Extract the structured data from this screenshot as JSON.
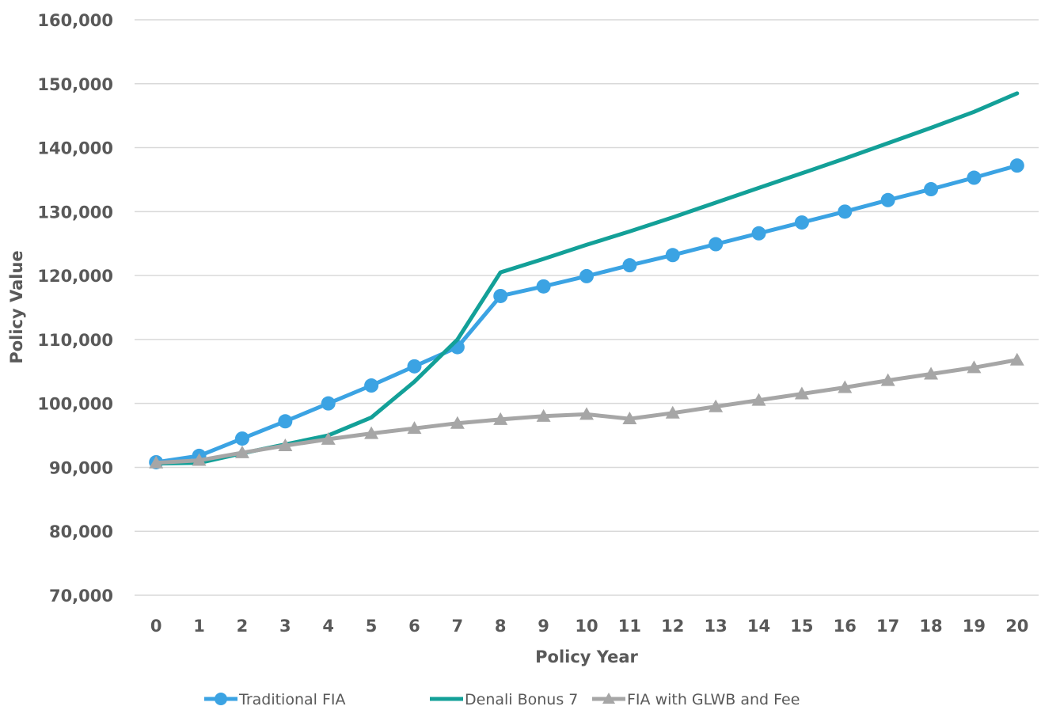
{
  "chart_data": {
    "type": "line",
    "title": "",
    "xlabel": "Policy Year",
    "ylabel": "Policy Value",
    "x": [
      0,
      1,
      2,
      3,
      4,
      5,
      6,
      7,
      8,
      9,
      10,
      11,
      12,
      13,
      14,
      15,
      16,
      17,
      18,
      19,
      20
    ],
    "x_tick_labels": [
      "0",
      "1",
      "2",
      "3",
      "4",
      "5",
      "6",
      "7",
      "8",
      "9",
      "10",
      "11",
      "12",
      "13",
      "14",
      "15",
      "16",
      "17",
      "18",
      "19",
      "20"
    ],
    "y_ticks": [
      70000,
      80000,
      90000,
      100000,
      110000,
      120000,
      130000,
      140000,
      150000,
      160000
    ],
    "y_tick_labels": [
      "70,000",
      "80,000",
      "90,000",
      "100,000",
      "110,000",
      "120,000",
      "130,000",
      "140,000",
      "150,000",
      "160,000"
    ],
    "ylim": [
      70000,
      160000
    ],
    "grid": "horizontal",
    "legend_position": "bottom",
    "series": [
      {
        "name": "Traditional FIA",
        "color": "#3BA3E3",
        "marker": "circle",
        "values": [
          90800,
          91800,
          94500,
          97200,
          100000,
          102800,
          105800,
          108800,
          116800,
          118300,
          119900,
          121600,
          123200,
          124900,
          126600,
          128300,
          130000,
          131800,
          133500,
          135300,
          137200
        ]
      },
      {
        "name": "Denali Bonus 7",
        "color": "#13A098",
        "marker": "none",
        "values": [
          90600,
          90700,
          92200,
          93600,
          95000,
          97800,
          103400,
          110000,
          120500,
          122600,
          124800,
          126900,
          129100,
          131400,
          133700,
          136000,
          138300,
          140700,
          143100,
          145600,
          148500
        ]
      },
      {
        "name": "FIA with GLWB and Fee",
        "color": "#A6A6A6",
        "marker": "triangle",
        "values": [
          90700,
          91100,
          92300,
          93400,
          94400,
          95300,
          96100,
          96900,
          97500,
          98000,
          98300,
          97600,
          98500,
          99500,
          100500,
          101500,
          102500,
          103600,
          104600,
          105600,
          106800
        ]
      }
    ]
  }
}
